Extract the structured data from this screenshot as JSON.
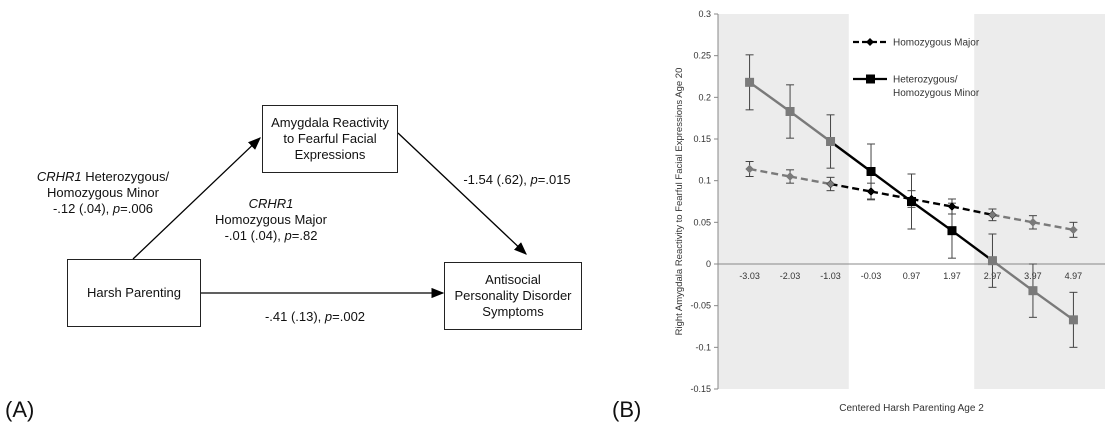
{
  "panel_a": {
    "label": "(A)",
    "nodes": {
      "harsh_parenting": "Harsh Parenting",
      "amygdala_lines": [
        "Amygdala Reactivity",
        "to Fearful Facial",
        "Expressions"
      ],
      "antisocial_lines": [
        "Antisocial",
        "Personality Disorder",
        "Symptoms"
      ]
    },
    "paths": {
      "a_path_het": {
        "gene": "CRHR1",
        "group": " Heterozygous/",
        "line2": "Homozygous Minor",
        "coef": "-.12 (.04), ",
        "p_label": "p",
        "p_value": "=.006"
      },
      "a_path_hom": {
        "gene": "CRHR1",
        "line2": "Homozygous Major",
        "coef": "-.01 (.04), ",
        "p_label": "p",
        "p_value": "=.82"
      },
      "b_path": {
        "coef": "-1.54 (.62), ",
        "p_label": "p",
        "p_value": "=.015"
      },
      "c_path": {
        "coef": "-.41 (.13), ",
        "p_label": "p",
        "p_value": "=.002"
      }
    }
  },
  "panel_b": {
    "label": "(B)"
  },
  "chart_data": {
    "type": "line",
    "xlabel": "Centered Harsh Parenting Age 2",
    "ylabel": "Right Amygdala Reactivity to Fearful Facial Expressions Age 20",
    "x": [
      "-3.03",
      "-2.03",
      "-1.03",
      "-0.03",
      "0.97",
      "1.97",
      "2.97",
      "3.97",
      "4.97"
    ],
    "ylim": [
      -0.15,
      0.3
    ],
    "yticks": [
      "-0.15",
      "-0.1",
      "-0.05",
      "0",
      "0.05",
      "0.1",
      "0.15",
      "0.2",
      "0.25",
      "0.3"
    ],
    "grid": false,
    "shaded_regions": [
      [
        -3.03,
        -1.03
      ],
      [
        2.97,
        4.97
      ]
    ],
    "legend_position": "top-left",
    "series": [
      {
        "name": "Homozygous Major",
        "marker": "diamond",
        "line": "dashed",
        "values": [
          0.114,
          0.105,
          0.096,
          0.087,
          0.078,
          0.069,
          0.059,
          0.05,
          0.041
        ],
        "errors": [
          0.009,
          0.008,
          0.008,
          0.01,
          0.01,
          0.009,
          0.007,
          0.008,
          0.009
        ]
      },
      {
        "name": "Heterozygous/\nHomozygous Minor",
        "marker": "square",
        "line": "solid",
        "values": [
          0.218,
          0.183,
          0.147,
          0.111,
          0.075,
          0.04,
          0.004,
          -0.032,
          -0.067
        ],
        "errors": [
          0.033,
          0.032,
          0.032,
          0.033,
          0.033,
          0.033,
          0.032,
          0.032,
          0.033
        ]
      }
    ],
    "colors": {
      "shade": "#ececec",
      "black": "#000000",
      "gray": "#7a7a7a",
      "axis": "#888888",
      "text": "#333333"
    }
  }
}
